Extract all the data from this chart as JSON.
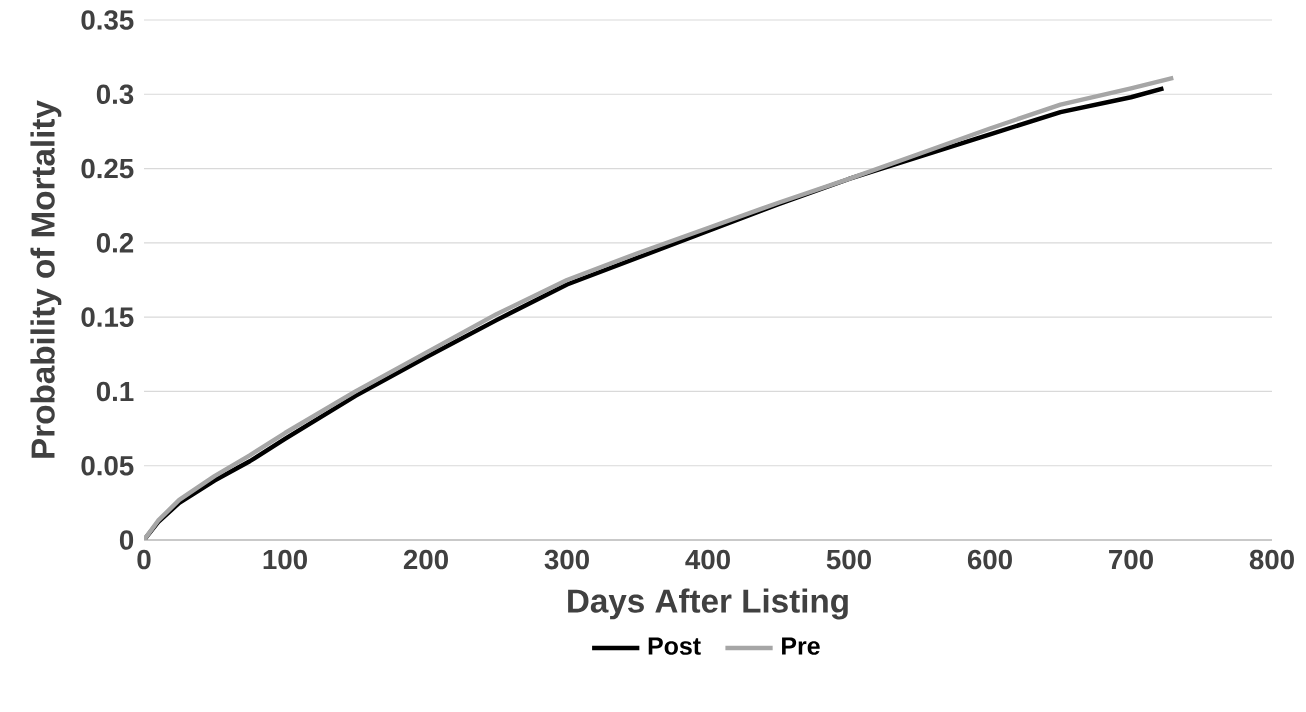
{
  "chart_data": {
    "type": "line",
    "xlabel": "Days After Listing",
    "ylabel": "Probability of Mortality",
    "xlim": [
      0,
      800
    ],
    "xticks": [
      0,
      100,
      200,
      300,
      400,
      500,
      600,
      700,
      800
    ],
    "ylim": [
      0,
      0.35
    ],
    "yticks": [
      0,
      0.05,
      0.1,
      0.15,
      0.2,
      0.25,
      0.3,
      0.35
    ],
    "grid": "y",
    "legend": "bottom",
    "marker": "none",
    "line_style": "solid",
    "series": [
      {
        "name": "Post",
        "color": "#000000",
        "x": [
          0,
          10,
          25,
          50,
          75,
          100,
          150,
          200,
          250,
          300,
          350,
          400,
          450,
          500,
          550,
          600,
          650,
          700,
          723
        ],
        "values": [
          0,
          0.012,
          0.025,
          0.04,
          0.053,
          0.068,
          0.097,
          0.123,
          0.148,
          0.172,
          0.19,
          0.208,
          0.226,
          0.243,
          0.258,
          0.273,
          0.288,
          0.298,
          0.304
        ]
      },
      {
        "name": "Pre",
        "color": "#a6a6a6",
        "x": [
          0,
          10,
          25,
          50,
          75,
          100,
          150,
          200,
          250,
          300,
          350,
          400,
          450,
          500,
          550,
          600,
          650,
          700,
          730
        ],
        "values": [
          0,
          0.013,
          0.027,
          0.043,
          0.057,
          0.072,
          0.1,
          0.126,
          0.152,
          0.175,
          0.193,
          0.21,
          0.227,
          0.243,
          0.26,
          0.277,
          0.293,
          0.304,
          0.311
        ]
      }
    ]
  }
}
